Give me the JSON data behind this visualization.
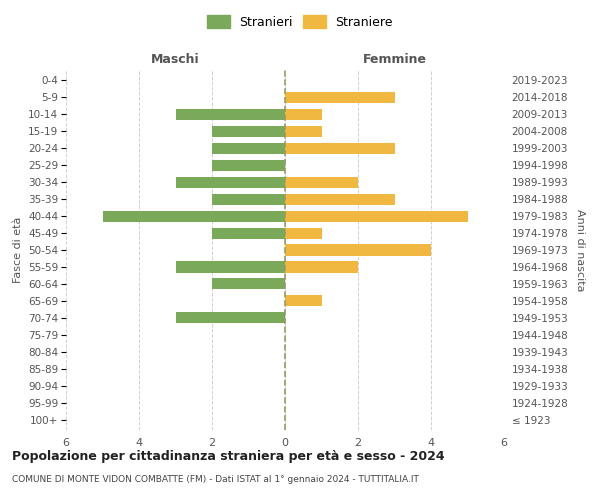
{
  "age_groups": [
    "100+",
    "95-99",
    "90-94",
    "85-89",
    "80-84",
    "75-79",
    "70-74",
    "65-69",
    "60-64",
    "55-59",
    "50-54",
    "45-49",
    "40-44",
    "35-39",
    "30-34",
    "25-29",
    "20-24",
    "15-19",
    "10-14",
    "5-9",
    "0-4"
  ],
  "birth_years": [
    "≤ 1923",
    "1924-1928",
    "1929-1933",
    "1934-1938",
    "1939-1943",
    "1944-1948",
    "1949-1953",
    "1954-1958",
    "1959-1963",
    "1964-1968",
    "1969-1973",
    "1974-1978",
    "1979-1983",
    "1984-1988",
    "1989-1993",
    "1994-1998",
    "1999-2003",
    "2004-2008",
    "2009-2013",
    "2014-2018",
    "2019-2023"
  ],
  "maschi": [
    0,
    0,
    0,
    0,
    0,
    0,
    3,
    0,
    2,
    3,
    0,
    2,
    5,
    2,
    3,
    2,
    2,
    2,
    3,
    0,
    0
  ],
  "femmine": [
    0,
    0,
    0,
    0,
    0,
    0,
    0,
    1,
    0,
    2,
    4,
    1,
    5,
    3,
    2,
    0,
    3,
    1,
    1,
    3,
    0
  ],
  "color_maschi": "#7aaa59",
  "color_femmine": "#f0b840",
  "title": "Popolazione per cittadinanza straniera per età e sesso - 2024",
  "subtitle": "COMUNE DI MONTE VIDON COMBATTE (FM) - Dati ISTAT al 1° gennaio 2024 - TUTTITALIA.IT",
  "ylabel_left": "Fasce di età",
  "ylabel_right": "Anni di nascita",
  "xlabel_maschi": "Maschi",
  "xlabel_femmine": "Femmine",
  "legend_stranieri": "Stranieri",
  "legend_straniere": "Straniere",
  "xlim": 6,
  "background_color": "#ffffff",
  "grid_color": "#d0d0d0"
}
